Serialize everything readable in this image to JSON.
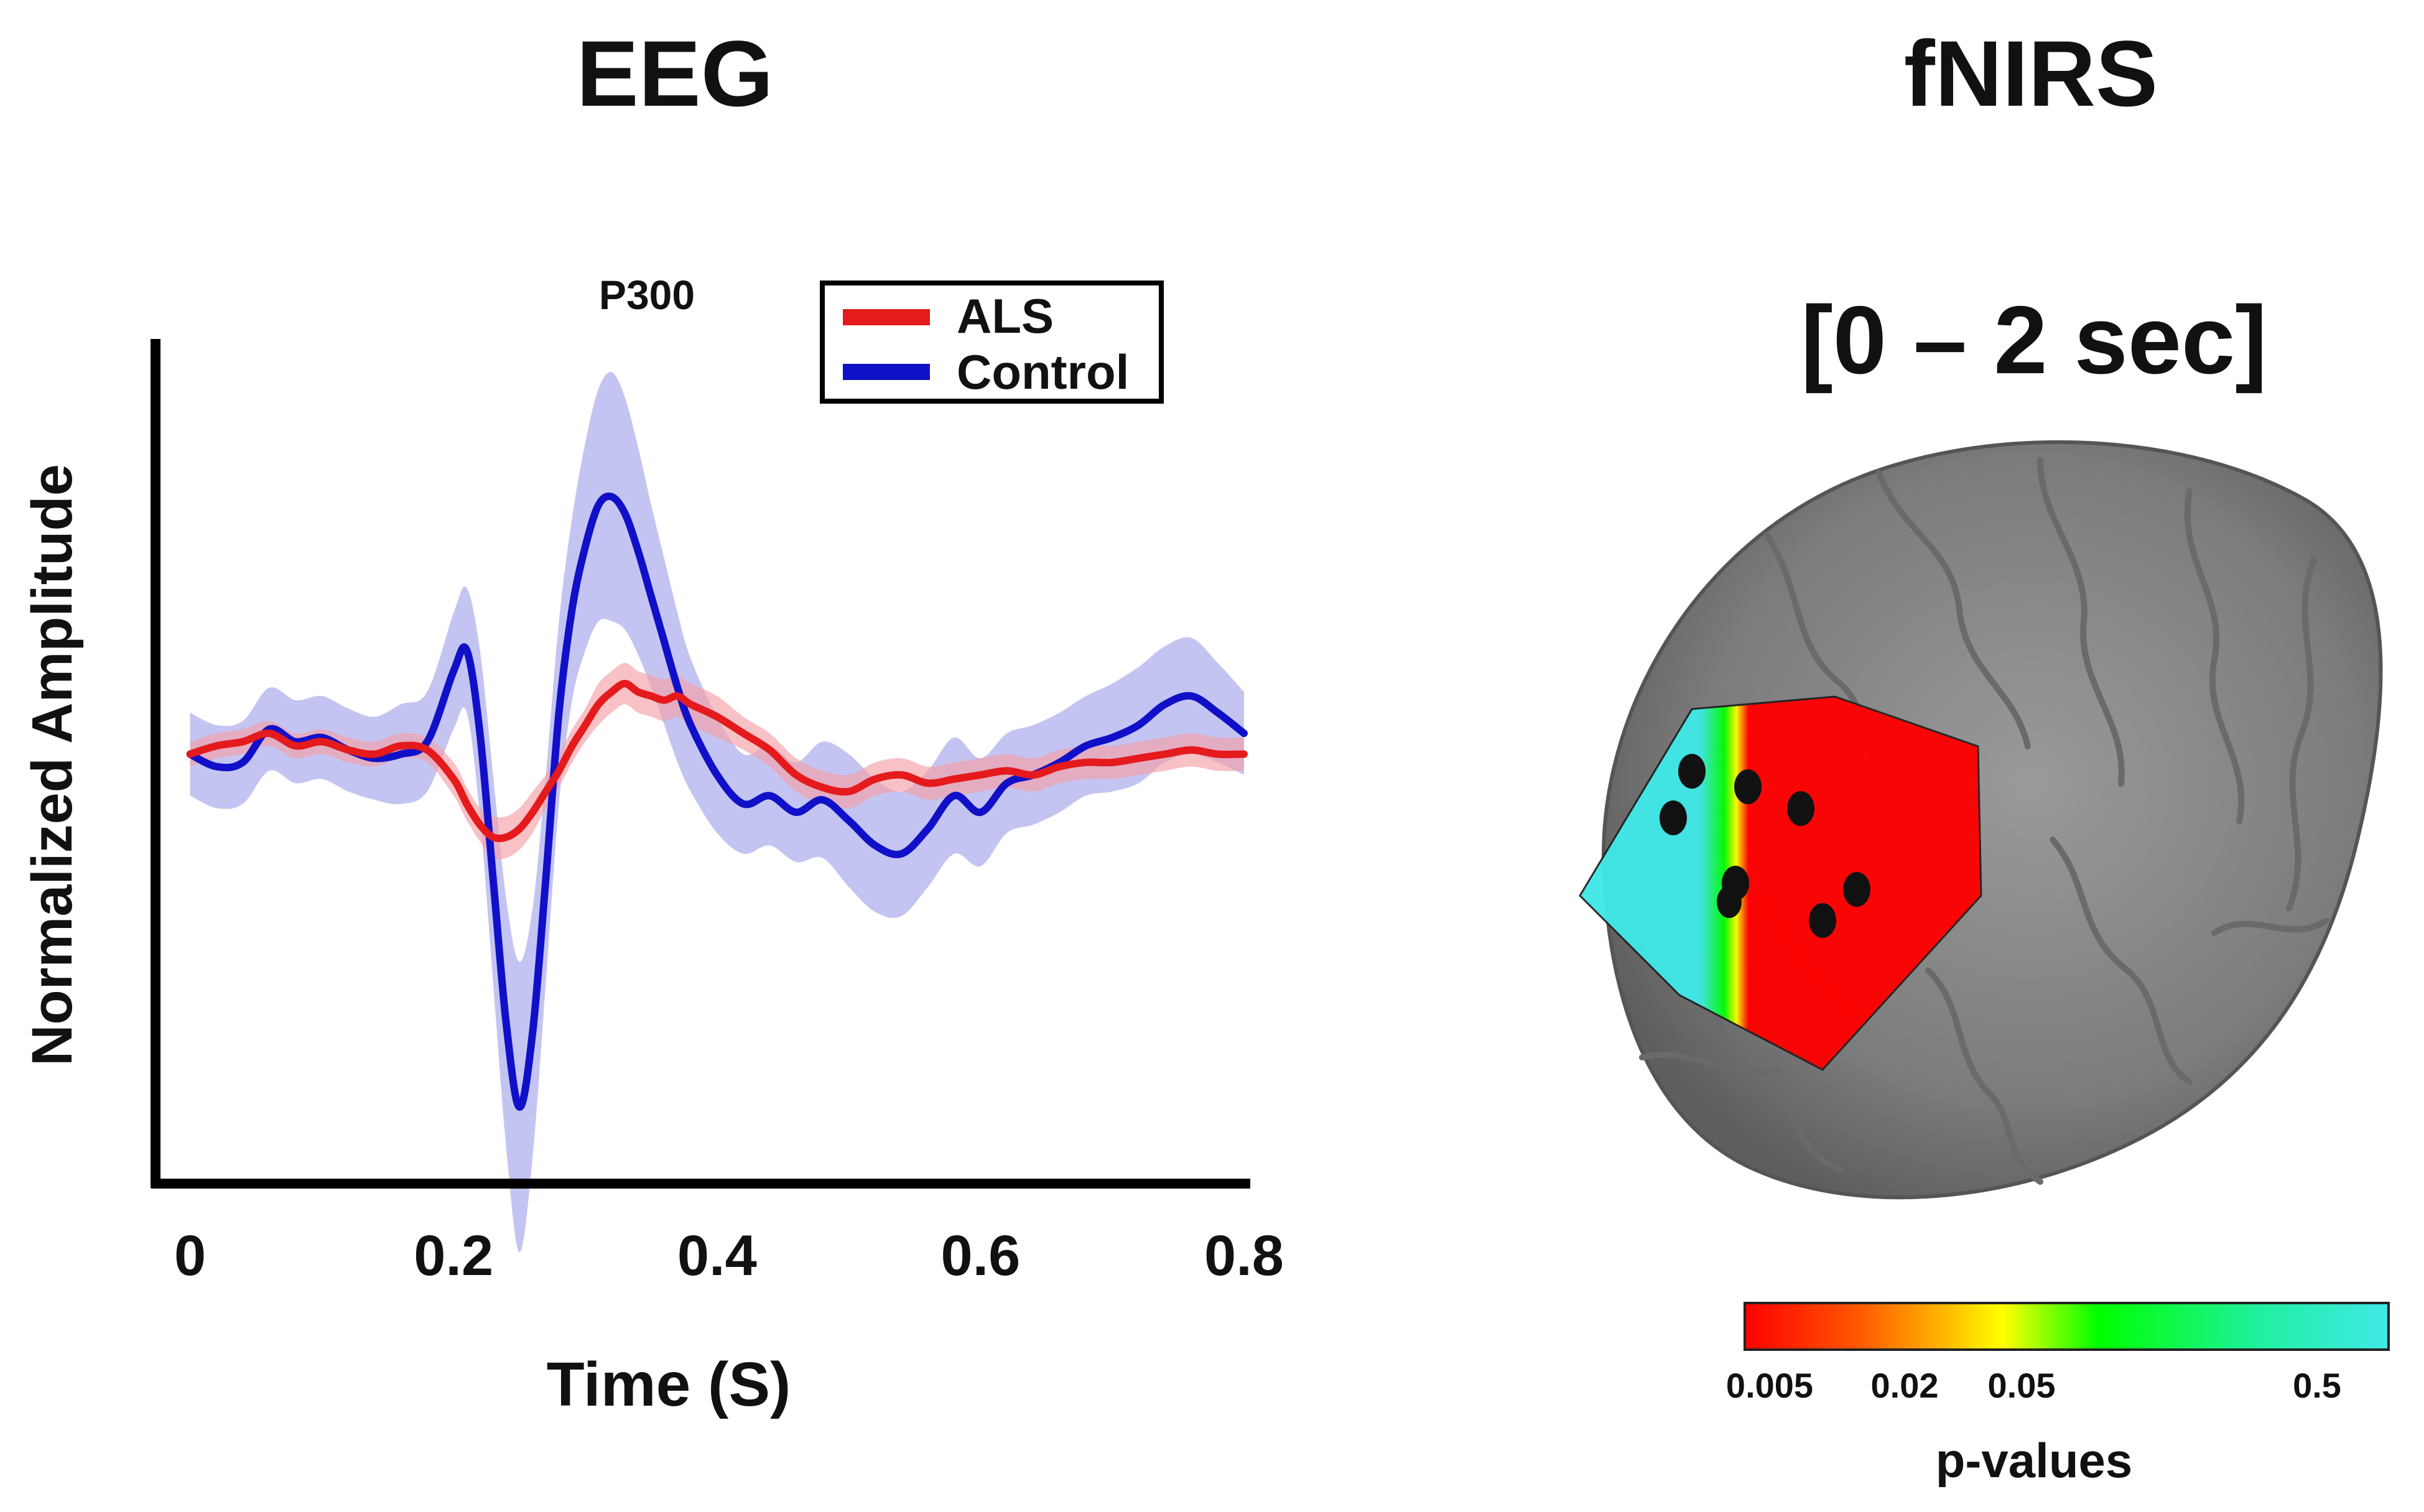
{
  "panels": {
    "eeg_title": "EEG",
    "fnirs_title": "fNIRS",
    "fnirs_window": "[0 – 2 sec]"
  },
  "chart_data": {
    "type": "line",
    "title": "",
    "annotation": "P300",
    "xlabel": "Time (S)",
    "ylabel": "Normalized Amplitude",
    "xlim": [
      -0.005,
      0.8
    ],
    "ylim": [
      -1.0,
      1.0
    ],
    "x_ticks": [
      0,
      0.2,
      0.4,
      0.6,
      0.8
    ],
    "x_tick_labels": [
      "0",
      "0.2",
      "0.4",
      "0.6",
      "0.8"
    ],
    "legend_position": "top-right",
    "colors": {
      "ALS": "#e41a1c",
      "Control": "#1010c8",
      "ALS_band": "#f4a0a6",
      "Control_band": "#b0b0ee"
    },
    "x": [
      0,
      0.02,
      0.04,
      0.06,
      0.08,
      0.1,
      0.12,
      0.14,
      0.16,
      0.18,
      0.2,
      0.21,
      0.22,
      0.23,
      0.24,
      0.25,
      0.26,
      0.27,
      0.28,
      0.29,
      0.3,
      0.31,
      0.32,
      0.33,
      0.34,
      0.35,
      0.36,
      0.37,
      0.38,
      0.4,
      0.42,
      0.44,
      0.46,
      0.48,
      0.5,
      0.52,
      0.54,
      0.56,
      0.58,
      0.6,
      0.62,
      0.64,
      0.66,
      0.68,
      0.7,
      0.72,
      0.74,
      0.76,
      0.78,
      0.8
    ],
    "series": [
      {
        "name": "ALS",
        "values": [
          0.0,
          0.02,
          0.03,
          0.05,
          0.02,
          0.03,
          0.01,
          0.0,
          0.02,
          0.01,
          -0.06,
          -0.12,
          -0.17,
          -0.2,
          -0.2,
          -0.18,
          -0.14,
          -0.09,
          -0.04,
          0.02,
          0.07,
          0.12,
          0.15,
          0.17,
          0.15,
          0.14,
          0.13,
          0.14,
          0.12,
          0.09,
          0.05,
          0.01,
          -0.05,
          -0.08,
          -0.09,
          -0.06,
          -0.05,
          -0.07,
          -0.06,
          -0.05,
          -0.04,
          -0.05,
          -0.03,
          -0.02,
          -0.02,
          -0.01,
          0.0,
          0.01,
          0.0,
          0.0
        ],
        "band": [
          0.03,
          0.03,
          0.03,
          0.03,
          0.03,
          0.03,
          0.03,
          0.03,
          0.03,
          0.03,
          0.04,
          0.04,
          0.04,
          0.05,
          0.05,
          0.05,
          0.05,
          0.04,
          0.04,
          0.04,
          0.04,
          0.05,
          0.05,
          0.05,
          0.05,
          0.05,
          0.05,
          0.05,
          0.05,
          0.05,
          0.04,
          0.04,
          0.04,
          0.04,
          0.04,
          0.04,
          0.04,
          0.04,
          0.04,
          0.04,
          0.04,
          0.04,
          0.04,
          0.04,
          0.04,
          0.04,
          0.04,
          0.04,
          0.04,
          0.04
        ]
      },
      {
        "name": "Control",
        "values": [
          0.0,
          -0.03,
          -0.02,
          0.06,
          0.03,
          0.04,
          0.01,
          -0.01,
          0.0,
          0.03,
          0.2,
          0.25,
          0.05,
          -0.3,
          -0.65,
          -0.85,
          -0.67,
          -0.3,
          0.1,
          0.35,
          0.5,
          0.6,
          0.62,
          0.58,
          0.49,
          0.38,
          0.27,
          0.16,
          0.07,
          -0.05,
          -0.12,
          -0.1,
          -0.14,
          -0.11,
          -0.16,
          -0.22,
          -0.24,
          -0.18,
          -0.1,
          -0.14,
          -0.07,
          -0.05,
          -0.02,
          0.02,
          0.04,
          0.07,
          0.12,
          0.14,
          0.1,
          0.05
        ],
        "band": [
          0.1,
          0.1,
          0.1,
          0.1,
          0.1,
          0.1,
          0.1,
          0.1,
          0.12,
          0.12,
          0.14,
          0.15,
          0.2,
          0.25,
          0.3,
          0.35,
          0.3,
          0.25,
          0.22,
          0.22,
          0.25,
          0.28,
          0.3,
          0.28,
          0.25,
          0.22,
          0.2,
          0.18,
          0.16,
          0.14,
          0.12,
          0.12,
          0.12,
          0.14,
          0.16,
          0.16,
          0.15,
          0.14,
          0.14,
          0.13,
          0.12,
          0.12,
          0.12,
          0.12,
          0.13,
          0.14,
          0.14,
          0.14,
          0.12,
          0.1
        ]
      }
    ]
  },
  "fnirs_colorbar": {
    "title": "p-values",
    "labels": [
      "0.005",
      "0.02",
      "0.05",
      "0.5"
    ],
    "colors": [
      "#ff0000",
      "#ff8000",
      "#ffff00",
      "#00ff00",
      "#40e8e8"
    ]
  }
}
